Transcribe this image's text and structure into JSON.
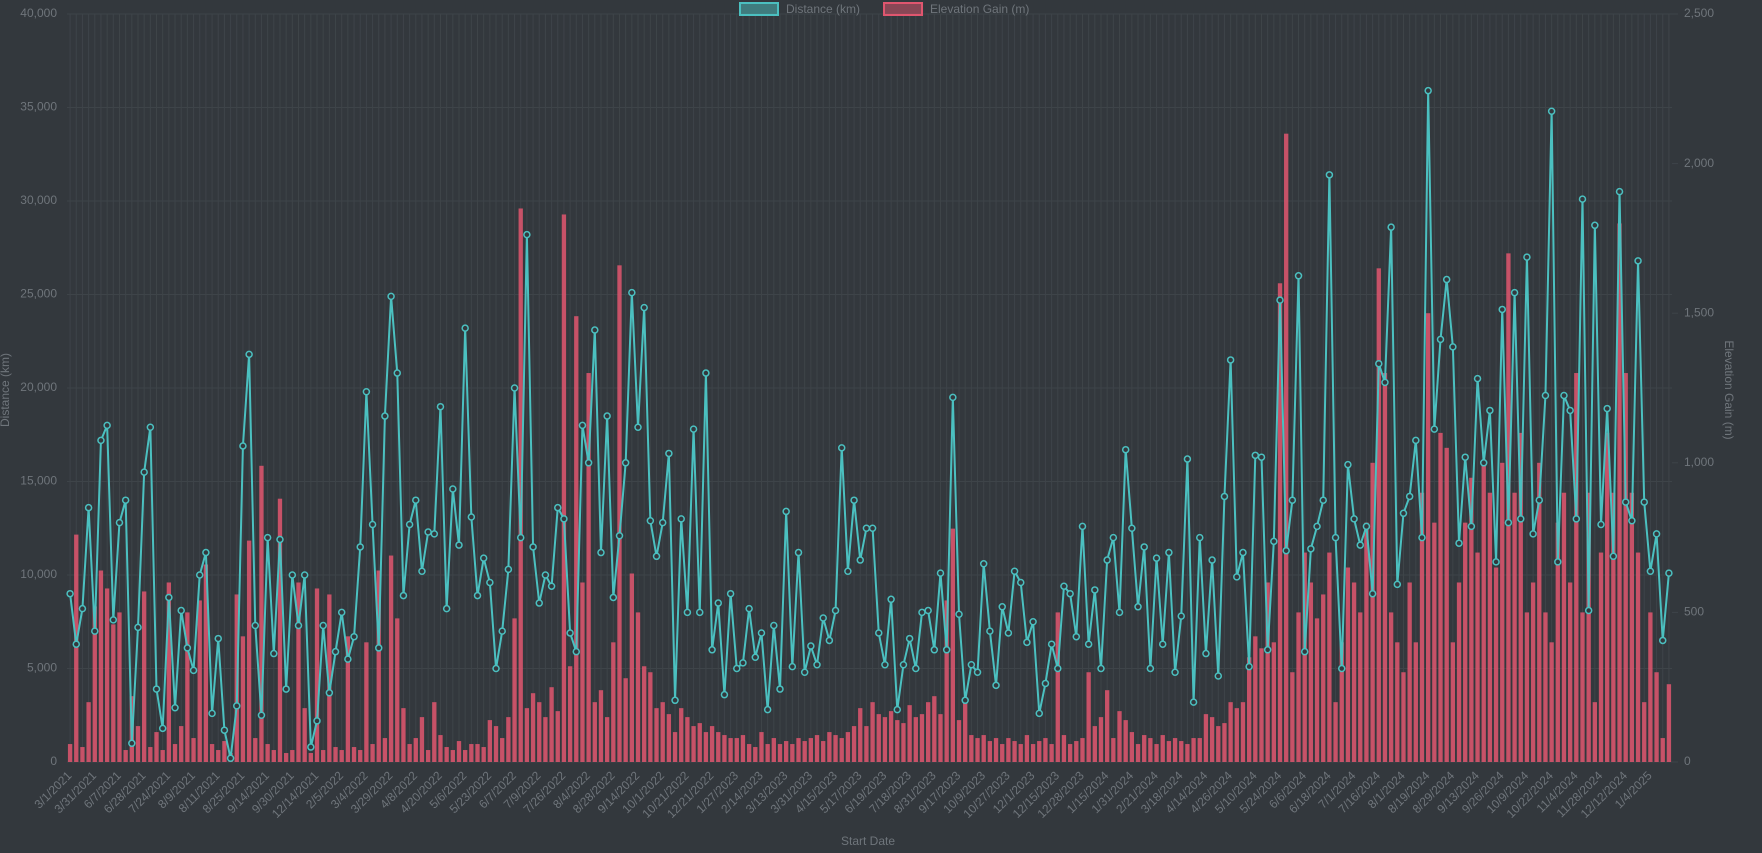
{
  "chart_data": {
    "type": "bar-line",
    "x_label": "Start Date",
    "y_label": "Distance (km)",
    "y2_label": "Elevation Gain (m)",
    "legend": "top",
    "grid": true,
    "categories": [
      "3/1/2021",
      null,
      null,
      null,
      "3/31/2021",
      null,
      null,
      null,
      "6/7/2021",
      null,
      null,
      null,
      "6/28/2021",
      null,
      null,
      null,
      "7/24/2021",
      null,
      null,
      null,
      "8/9/2021",
      null,
      null,
      null,
      "8/11/2021",
      null,
      null,
      null,
      "8/25/2021",
      null,
      null,
      null,
      "9/14/2021",
      null,
      null,
      null,
      "9/30/2021",
      null,
      null,
      null,
      "12/14/2021",
      null,
      null,
      null,
      "2/5/2022",
      null,
      null,
      null,
      "3/4/2022",
      null,
      null,
      null,
      "3/29/2022",
      null,
      null,
      null,
      "4/8/2022",
      null,
      null,
      null,
      "4/20/2022",
      null,
      null,
      null,
      "5/6/2022",
      null,
      null,
      null,
      "5/23/2022",
      null,
      null,
      null,
      "6/7/2022",
      null,
      null,
      null,
      "7/9/2022",
      null,
      null,
      null,
      "7/26/2022",
      null,
      null,
      null,
      "8/4/2022",
      null,
      null,
      null,
      "8/28/2022",
      null,
      null,
      null,
      "9/14/2022",
      null,
      null,
      null,
      "10/1/2022",
      null,
      null,
      null,
      "10/21/2022",
      null,
      null,
      null,
      "12/21/2022",
      null,
      null,
      null,
      "1/27/2023",
      null,
      null,
      null,
      "2/14/2023",
      null,
      null,
      null,
      "3/13/2023",
      null,
      null,
      null,
      "3/31/2023",
      null,
      null,
      null,
      "4/15/2023",
      null,
      null,
      null,
      "5/17/2023",
      null,
      null,
      null,
      "6/19/2023",
      null,
      null,
      null,
      "7/18/2023",
      null,
      null,
      null,
      "8/31/2023",
      null,
      null,
      null,
      "9/17/2023",
      null,
      null,
      null,
      "10/9/2023",
      null,
      null,
      null,
      "10/27/2023",
      null,
      null,
      null,
      "12/1/2023",
      null,
      null,
      null,
      "12/15/2023",
      null,
      null,
      null,
      "12/28/2023",
      null,
      null,
      null,
      "1/15/2024",
      null,
      null,
      null,
      "1/31/2024",
      null,
      null,
      null,
      "2/21/2024",
      null,
      null,
      null,
      "3/18/2024",
      null,
      null,
      null,
      "4/14/2024",
      null,
      null,
      null,
      "4/26/2024",
      null,
      null,
      null,
      "5/10/2024",
      null,
      null,
      null,
      "5/24/2024",
      null,
      null,
      null,
      "6/6/2024",
      null,
      null,
      null,
      "6/18/2024",
      null,
      null,
      null,
      "7/1/2024",
      null,
      null,
      null,
      "7/16/2024",
      null,
      null,
      null,
      "8/1/2024",
      null,
      null,
      null,
      "8/19/2024",
      null,
      null,
      null,
      "8/29/2024",
      null,
      null,
      null,
      "9/13/2024",
      null,
      null,
      null,
      "9/26/2024",
      null,
      null,
      null,
      "10/9/2024",
      null,
      null,
      null,
      "10/22/2024",
      null,
      null,
      null,
      "11/4/2024",
      null,
      null,
      null,
      "11/28/2024",
      null,
      null,
      null,
      "12/12/2024",
      null,
      null,
      null,
      "1/4/2025",
      null,
      null,
      null
    ],
    "series": [
      {
        "name": "Distance (km)",
        "type": "line",
        "axis": "y",
        "color": "#4bc0c0",
        "values": [
          9000,
          6300,
          8200,
          13600,
          7000,
          17200,
          18000,
          7600,
          12800,
          14000,
          1000,
          7200,
          15500,
          17900,
          3900,
          1800,
          8800,
          2900,
          8100,
          6100,
          4900,
          10000,
          11200,
          2600,
          6600,
          1700,
          200,
          3000,
          16900,
          21800,
          7300,
          2500,
          12000,
          5800,
          11900,
          3900,
          10000,
          7300,
          10000,
          800,
          2200,
          7300,
          3700,
          5900,
          8000,
          5500,
          6700,
          11500,
          19800,
          12700,
          6100,
          18500,
          24900,
          20800,
          8900,
          12700,
          14000,
          10200,
          12300,
          12200,
          19000,
          8200,
          14600,
          11600,
          23200,
          13100,
          8900,
          10900,
          9600,
          5000,
          7000,
          10300,
          20000,
          12000,
          28200,
          11500,
          8500,
          10000,
          9400,
          13600,
          13000,
          6900,
          5900,
          18000,
          16000,
          23100,
          11200,
          18500,
          8800,
          12100,
          16000,
          25100,
          17900,
          24300,
          12900,
          11000,
          12800,
          16500,
          3300,
          13000,
          8000,
          17800,
          8000,
          20800,
          6000,
          8500,
          3600,
          9000,
          5000,
          5300,
          8200,
          5600,
          6900,
          2800,
          7300,
          3900,
          13400,
          5100,
          11200,
          4800,
          6200,
          5200,
          7700,
          6500,
          8100,
          16800,
          10200,
          14000,
          10800,
          12500,
          12500,
          6900,
          5200,
          8700,
          2800,
          5200,
          6600,
          5000,
          8000,
          8100,
          6000,
          10100,
          6000,
          19500,
          7900,
          3300,
          5200,
          4800,
          10600,
          7000,
          4100,
          8300,
          6900,
          10200,
          9600,
          6400,
          7500,
          2600,
          4200,
          6300,
          5000,
          9400,
          9000,
          6700,
          12600,
          6300,
          9200,
          5000,
          10800,
          12000,
          8000,
          16700,
          12500,
          8300,
          11500,
          5000,
          10900,
          6300,
          11200,
          4800,
          7800,
          16200,
          3200,
          12000,
          5800,
          10800,
          4600,
          14200,
          21500,
          9900,
          11200,
          5100,
          16400,
          16300,
          6000,
          11800,
          24700,
          11300,
          14000,
          26000,
          5900,
          11400,
          12600,
          14000,
          31400,
          12000,
          5000,
          15900,
          13000,
          11600,
          12600,
          9000,
          21300,
          20300,
          28600,
          9500,
          13300,
          14200,
          17200,
          12000,
          35900,
          17800,
          22600,
          25800,
          22200,
          11700,
          16300,
          12600,
          20500,
          16000,
          18800,
          10700,
          24200,
          12800,
          25100,
          13000,
          27000,
          12200,
          14000,
          19600,
          34800,
          10700,
          19600,
          18800,
          13000,
          30100,
          8100,
          28700,
          12700,
          18900,
          11000,
          30500,
          13900,
          12900,
          26800,
          13900,
          10200,
          12200,
          6500,
          10100
        ]
      },
      {
        "name": "Elevation Gain (m)",
        "type": "bar",
        "axis": "y2",
        "color": "#e0566f",
        "values": [
          60,
          760,
          50,
          200,
          520,
          640,
          580,
          460,
          500,
          40,
          220,
          120,
          570,
          50,
          100,
          40,
          600,
          60,
          120,
          500,
          80,
          540,
          660,
          60,
          40,
          70,
          30,
          560,
          420,
          740,
          80,
          990,
          60,
          40,
          880,
          30,
          40,
          600,
          180,
          30,
          580,
          40,
          560,
          50,
          40,
          420,
          50,
          40,
          400,
          60,
          640,
          80,
          690,
          480,
          180,
          60,
          80,
          150,
          40,
          200,
          90,
          50,
          40,
          70,
          40,
          60,
          60,
          50,
          140,
          120,
          80,
          150,
          480,
          1850,
          180,
          230,
          200,
          150,
          250,
          170,
          1830,
          320,
          1490,
          600,
          1300,
          200,
          240,
          150,
          400,
          1660,
          280,
          630,
          500,
          320,
          300,
          180,
          200,
          160,
          100,
          180,
          150,
          120,
          130,
          100,
          120,
          100,
          90,
          80,
          80,
          90,
          60,
          50,
          100,
          60,
          80,
          60,
          70,
          60,
          80,
          70,
          80,
          90,
          70,
          100,
          90,
          80,
          100,
          120,
          180,
          120,
          200,
          160,
          150,
          170,
          140,
          130,
          190,
          150,
          160,
          200,
          220,
          160,
          540,
          780,
          140,
          200,
          90,
          80,
          90,
          70,
          80,
          60,
          80,
          70,
          60,
          90,
          60,
          70,
          80,
          60,
          500,
          90,
          60,
          70,
          80,
          300,
          120,
          150,
          240,
          80,
          170,
          140,
          100,
          60,
          90,
          80,
          60,
          90,
          70,
          80,
          70,
          60,
          80,
          80,
          160,
          150,
          120,
          130,
          200,
          180,
          200,
          350,
          420,
          380,
          600,
          400,
          1600,
          2100,
          300,
          500,
          700,
          600,
          480,
          560,
          700,
          200,
          400,
          650,
          600,
          500,
          800,
          1000,
          1650,
          1300,
          500,
          400,
          300,
          600,
          400,
          900,
          1500,
          800,
          1100,
          1050,
          400,
          600,
          800,
          950,
          700,
          1000,
          900,
          650,
          1000,
          1700,
          900,
          1100,
          500,
          600,
          1000,
          500,
          400,
          800,
          900,
          600,
          1300,
          500,
          900,
          200,
          700,
          1100,
          900,
          1800,
          1300,
          900,
          700,
          200,
          500,
          300,
          80,
          260
        ]
      }
    ],
    "ylim": [
      0,
      40000
    ],
    "yticks": [
      0,
      {
        "value": 5000,
        "label": "5,000"
      },
      {
        "value": 10000,
        "label": "10,000"
      },
      {
        "value": 15000,
        "label": "15,000"
      },
      {
        "value": 20000,
        "label": "20,000"
      },
      {
        "value": 25000,
        "label": "25,000"
      },
      {
        "value": 30000,
        "label": "30,000"
      },
      {
        "value": 35000,
        "label": "35,000"
      },
      {
        "value": 40000,
        "label": "40,000"
      }
    ],
    "y2lim": [
      0,
      2500
    ],
    "y2ticks": [
      0,
      500,
      {
        "value": 1000,
        "label": "1,000"
      },
      {
        "value": 1500,
        "label": "1,500"
      },
      {
        "value": 2000,
        "label": "2,000"
      },
      {
        "value": 2500,
        "label": "2,500"
      }
    ]
  }
}
